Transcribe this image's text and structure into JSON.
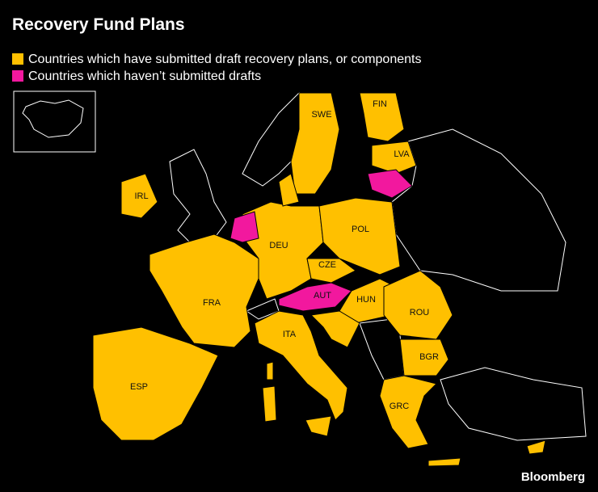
{
  "title": "Recovery Fund Plans",
  "legend": [
    {
      "label": "Countries which have submitted draft recovery plans, or components",
      "color": "#ffc000"
    },
    {
      "label": "Countries which haven’t submitted drafts",
      "color": "#f2189e"
    }
  ],
  "countries": [
    "SWE",
    "FIN",
    "LVA",
    "IRL",
    "POL",
    "DEU",
    "CZE",
    "FRA",
    "AUT",
    "HUN",
    "ROU",
    "ITA",
    "BGR",
    "ESP",
    "GRC"
  ],
  "credit": "Bloomberg"
}
